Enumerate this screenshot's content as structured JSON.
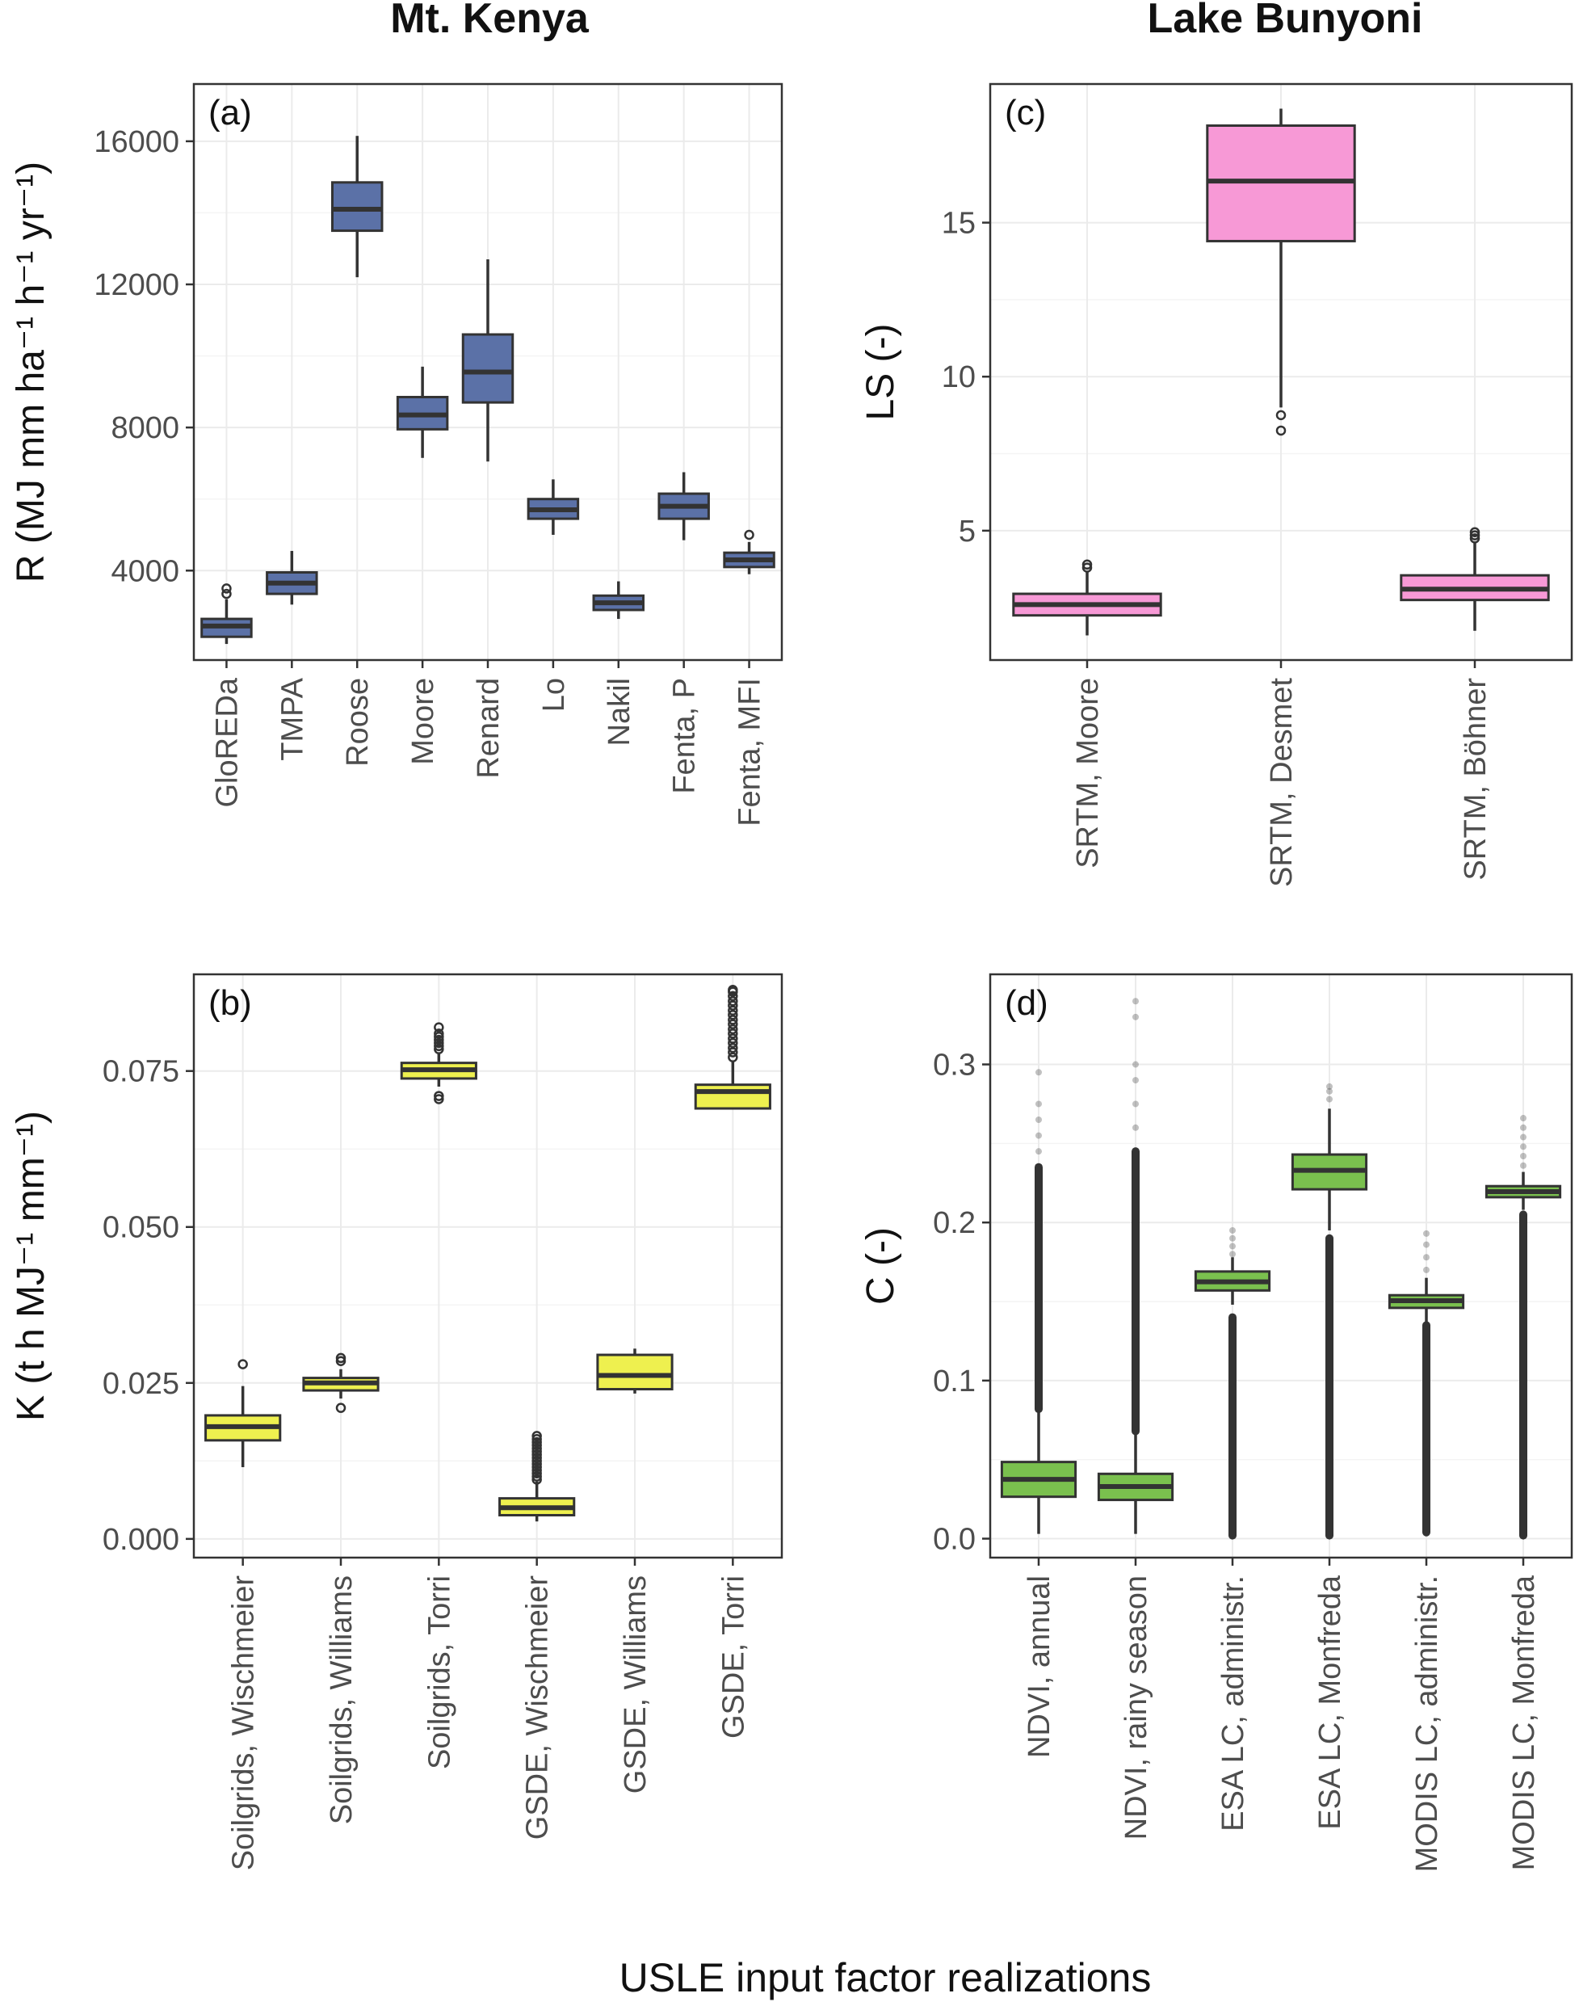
{
  "figure": {
    "col_titles": [
      "Mt. Kenya",
      "Lake Bunyoni"
    ],
    "xlabel": "USLE input factor realizations"
  },
  "chart_data": [
    {
      "type": "box",
      "panel": "(a)",
      "ylabel": "R (MJ mm ha⁻¹ h⁻¹ yr⁻¹)",
      "ylim": [
        1500,
        17600
      ],
      "yticks": [
        4000,
        8000,
        12000,
        16000
      ],
      "yticklabels": [
        "4000",
        "8000",
        "12000",
        "16000"
      ],
      "fill": "#5b71a7",
      "categories": [
        "GloREDa",
        "TMPA",
        "Roose",
        "Moore",
        "Renard",
        "Lo",
        "Nakil",
        "Fenta, P",
        "Fenta, MFI"
      ],
      "boxes": [
        {
          "low": 1950,
          "q1": 2150,
          "median": 2450,
          "q3": 2650,
          "high": 3200,
          "outliers": [
            3350,
            3500
          ]
        },
        {
          "low": 3050,
          "q1": 3350,
          "median": 3650,
          "q3": 3950,
          "high": 4550,
          "outliers": []
        },
        {
          "low": 12200,
          "q1": 13500,
          "median": 14100,
          "q3": 14850,
          "high": 16150,
          "outliers": []
        },
        {
          "low": 7150,
          "q1": 7950,
          "median": 8350,
          "q3": 8850,
          "high": 9700,
          "outliers": []
        },
        {
          "low": 7050,
          "q1": 8700,
          "median": 9550,
          "q3": 10600,
          "high": 12700,
          "outliers": []
        },
        {
          "low": 5000,
          "q1": 5450,
          "median": 5700,
          "q3": 6000,
          "high": 6550,
          "outliers": []
        },
        {
          "low": 2650,
          "q1": 2900,
          "median": 3100,
          "q3": 3300,
          "high": 3700,
          "outliers": []
        },
        {
          "low": 4850,
          "q1": 5450,
          "median": 5800,
          "q3": 6150,
          "high": 6750,
          "outliers": []
        },
        {
          "low": 3900,
          "q1": 4100,
          "median": 4300,
          "q3": 4500,
          "high": 4800,
          "outliers": [
            5000
          ]
        }
      ]
    },
    {
      "type": "box",
      "panel": "(b)",
      "ylabel": "K (t h MJ⁻¹ mm⁻¹)",
      "ylim": [
        -0.003,
        0.0905
      ],
      "yticks": [
        0.0,
        0.025,
        0.05,
        0.075
      ],
      "yticklabels": [
        "0.000",
        "0.025",
        "0.050",
        "0.075"
      ],
      "fill": "#eef04f",
      "categories": [
        "Soilgrids, Wischmeier",
        "Soilgrids, Williams",
        "Soilgrids, Torri",
        "GSDE, Wischmeier",
        "GSDE, Williams",
        "GSDE, Torri"
      ],
      "boxes": [
        {
          "low": 0.0115,
          "q1": 0.0158,
          "median": 0.018,
          "q3": 0.0198,
          "high": 0.0245,
          "outliers": [
            0.028
          ]
        },
        {
          "low": 0.0225,
          "q1": 0.0238,
          "median": 0.025,
          "q3": 0.0258,
          "high": 0.0272,
          "outliers": [
            0.021,
            0.0285,
            0.029
          ]
        },
        {
          "low": 0.0725,
          "q1": 0.0738,
          "median": 0.0752,
          "q3": 0.0763,
          "high": 0.0778,
          "outliers": [
            0.0705,
            0.071,
            0.0785,
            0.079,
            0.0795,
            0.08,
            0.0805,
            0.081,
            0.082
          ]
        },
        {
          "low": 0.0028,
          "q1": 0.0038,
          "median": 0.005,
          "q3": 0.0065,
          "high": 0.0092,
          "outliers": [
            0.0095,
            0.01,
            0.0105,
            0.011,
            0.0115,
            0.012,
            0.0125,
            0.013,
            0.0135,
            0.014,
            0.0145,
            0.015,
            0.0155,
            0.016,
            0.0165
          ]
        },
        {
          "low": 0.0233,
          "q1": 0.024,
          "median": 0.0262,
          "q3": 0.0295,
          "high": 0.0305,
          "outliers": []
        },
        {
          "low": 0.069,
          "q1": 0.069,
          "median": 0.0717,
          "q3": 0.0728,
          "high": 0.0765,
          "outliers": [
            0.0772,
            0.078,
            0.0787,
            0.0795,
            0.0802,
            0.081,
            0.0817,
            0.0825,
            0.0832,
            0.084,
            0.0847,
            0.0855,
            0.0862,
            0.087,
            0.0877,
            0.088
          ]
        }
      ]
    },
    {
      "type": "box",
      "panel": "(c)",
      "ylabel": "LS (-)",
      "ylim": [
        0.8,
        19.5
      ],
      "yticks": [
        5,
        10,
        15
      ],
      "yticklabels": [
        "5",
        "10",
        "15"
      ],
      "fill": "#f799d6",
      "categories": [
        "SRTM, Moore",
        "SRTM, Desmet",
        "SRTM, Böhner"
      ],
      "boxes": [
        {
          "low": 1.6,
          "q1": 2.25,
          "median": 2.6,
          "q3": 2.95,
          "high": 3.7,
          "outliers": [
            3.8,
            3.9
          ]
        },
        {
          "low": 9.0,
          "q1": 14.4,
          "median": 16.35,
          "q3": 18.15,
          "high": 18.7,
          "outliers": [
            8.25,
            8.75
          ]
        },
        {
          "low": 1.75,
          "q1": 2.75,
          "median": 3.1,
          "q3": 3.55,
          "high": 4.6,
          "outliers": [
            4.75,
            4.85,
            4.95
          ]
        }
      ]
    },
    {
      "type": "box",
      "panel": "(d)",
      "ylabel": "C (-)",
      "ylim": [
        -0.012,
        0.357
      ],
      "yticks": [
        0.0,
        0.1,
        0.2,
        0.3
      ],
      "yticklabels": [
        "0.0",
        "0.1",
        "0.2",
        "0.3"
      ],
      "fill": "#7ac04e",
      "categories": [
        "NDVI, annual",
        "NDVI, rainy season",
        "ESA LC, administr.",
        "ESA LC, Monfreda",
        "MODIS LC, administr.",
        "MODIS LC, Monfreda"
      ],
      "boxes": [
        {
          "low": 0.003,
          "q1": 0.0265,
          "median": 0.0375,
          "q3": 0.0485,
          "high": 0.08,
          "outliers_range": [
            0.082,
            0.235
          ],
          "outliers_sparse": [
            0.245,
            0.255,
            0.265,
            0.275,
            0.295
          ]
        },
        {
          "low": 0.003,
          "q1": 0.0245,
          "median": 0.033,
          "q3": 0.041,
          "high": 0.066,
          "outliers_range": [
            0.068,
            0.245
          ],
          "outliers_sparse": [
            0.26,
            0.275,
            0.29,
            0.3,
            0.33,
            0.34
          ]
        },
        {
          "low": 0.148,
          "q1": 0.157,
          "median": 0.1625,
          "q3": 0.169,
          "high": 0.178,
          "outliers_range": [
            0.002,
            0.14
          ],
          "outliers_sparse": [
            0.18,
            0.185,
            0.19,
            0.195
          ]
        },
        {
          "low": 0.195,
          "q1": 0.221,
          "median": 0.233,
          "q3": 0.243,
          "high": 0.272,
          "outliers_range": [
            0.002,
            0.19
          ],
          "outliers_sparse": [
            0.278,
            0.283,
            0.286
          ]
        },
        {
          "low": 0.137,
          "q1": 0.146,
          "median": 0.1505,
          "q3": 0.154,
          "high": 0.165,
          "outliers_range": [
            0.004,
            0.135
          ],
          "outliers_sparse": [
            0.17,
            0.178,
            0.186,
            0.193
          ]
        },
        {
          "low": 0.208,
          "q1": 0.216,
          "median": 0.2195,
          "q3": 0.223,
          "high": 0.232,
          "outliers_range": [
            0.002,
            0.205
          ],
          "outliers_sparse": [
            0.236,
            0.242,
            0.248,
            0.254,
            0.26,
            0.266
          ]
        }
      ]
    }
  ]
}
